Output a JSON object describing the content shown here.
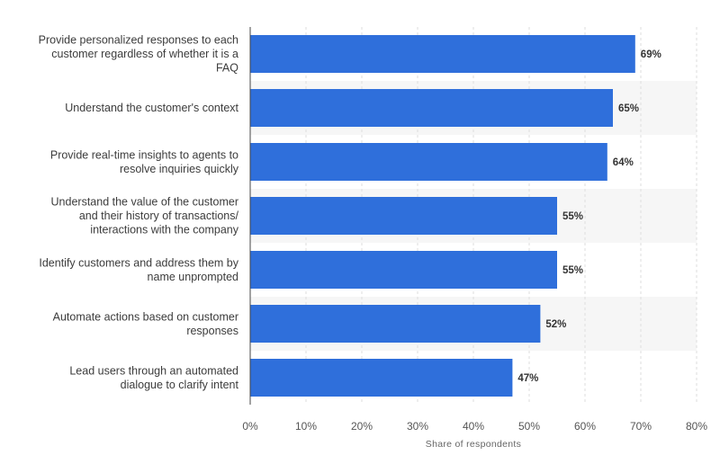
{
  "chart_data": {
    "type": "bar",
    "orientation": "horizontal",
    "categories": [
      "Provide personalized responses to each customer regardless of whether it is a FAQ",
      "Understand the customer's context",
      "Provide real-time insights to agents to resolve inquiries quickly",
      "Understand the value of the customer and their history of transactions/ interactions with the company",
      "Identify customers and address them by name unprompted",
      "Automate actions based on customer responses",
      "Lead users through an automated dialogue to clarify intent"
    ],
    "category_lines": [
      [
        "Provide personalized responses to each",
        "customer regardless of whether it is a",
        "FAQ"
      ],
      [
        "Understand the customer's context"
      ],
      [
        "Provide real-time insights to agents to",
        "resolve inquiries quickly"
      ],
      [
        "Understand the value of the customer",
        "and their history of transactions/",
        "interactions with the company"
      ],
      [
        "Identify customers and address them by",
        "name unprompted"
      ],
      [
        "Automate actions based on customer",
        "responses"
      ],
      [
        "Lead users through an automated",
        "dialogue to clarify intent"
      ]
    ],
    "values": [
      69,
      65,
      64,
      55,
      55,
      52,
      47
    ],
    "value_labels": [
      "69%",
      "65%",
      "64%",
      "55%",
      "55%",
      "52%",
      "47%"
    ],
    "xlim": [
      0,
      80
    ],
    "x_ticks": [
      0,
      10,
      20,
      30,
      40,
      50,
      60,
      70,
      80
    ],
    "x_tick_labels": [
      "0%",
      "10%",
      "20%",
      "30%",
      "40%",
      "50%",
      "60%",
      "70%",
      "80%"
    ],
    "xlabel": "Share of respondents",
    "ylabel": "",
    "title": "",
    "grid": true,
    "legend": "none",
    "colors": {
      "bar": "#2f6fdb",
      "band_alt": "#f6f6f6",
      "gridline": "#dddddd",
      "axis": "#444444"
    }
  }
}
